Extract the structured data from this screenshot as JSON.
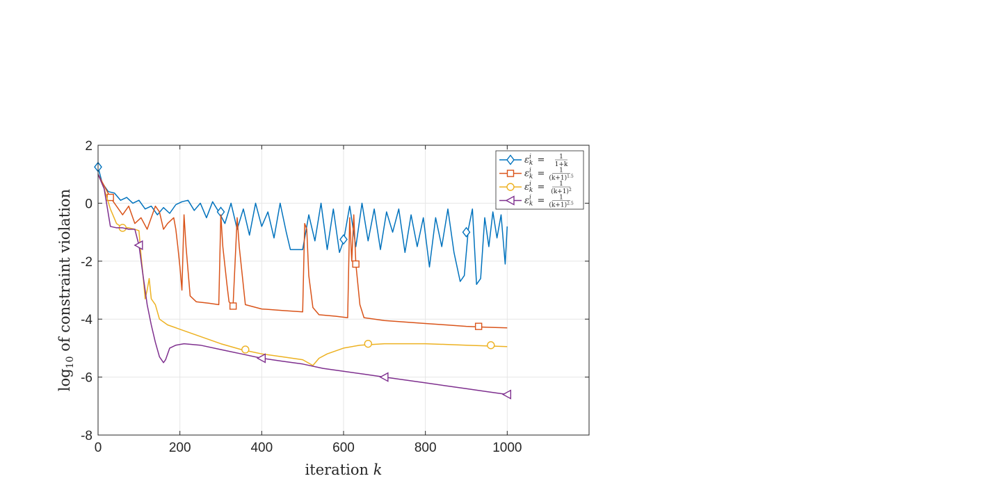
{
  "chart_data": {
    "type": "line",
    "title": "",
    "xlabel": "iteration k",
    "xlabel_text": "iteration",
    "xlabel_var": "k",
    "ylabel": "log10 of constraint violation",
    "ylabel_pre": "log",
    "ylabel_sub": "10",
    "ylabel_post": " of constraint violation",
    "xlim": [
      0,
      1200
    ],
    "ylim": [
      -8,
      2
    ],
    "xticks": [
      0,
      200,
      400,
      600,
      800,
      1000
    ],
    "yticks": [
      -8,
      -6,
      -4,
      -2,
      0,
      2
    ],
    "grid": true,
    "legend_position": "top-right",
    "series": [
      {
        "name": "ε_k^i = 1/(1+k)",
        "legend_lhs": "εki =",
        "legend_num": "1",
        "legend_den": "1+k",
        "color": "#0072BD",
        "marker": "diamond",
        "marker_points": [
          [
            0,
            1.25
          ],
          [
            300,
            -0.3
          ],
          [
            600,
            -1.25
          ],
          [
            900,
            -1.0
          ]
        ],
        "points": [
          [
            0,
            1.25
          ],
          [
            10,
            0.7
          ],
          [
            25,
            0.4
          ],
          [
            40,
            0.35
          ],
          [
            55,
            0.1
          ],
          [
            70,
            0.2
          ],
          [
            85,
            0.0
          ],
          [
            100,
            0.1
          ],
          [
            115,
            -0.2
          ],
          [
            130,
            -0.1
          ],
          [
            145,
            -0.4
          ],
          [
            160,
            -0.15
          ],
          [
            175,
            -0.35
          ],
          [
            190,
            -0.05
          ],
          [
            205,
            0.05
          ],
          [
            220,
            0.1
          ],
          [
            235,
            -0.25
          ],
          [
            250,
            0.0
          ],
          [
            265,
            -0.5
          ],
          [
            280,
            0.05
          ],
          [
            295,
            -0.3
          ],
          [
            310,
            -0.7
          ],
          [
            325,
            0.0
          ],
          [
            340,
            -0.9
          ],
          [
            355,
            -0.2
          ],
          [
            370,
            -1.1
          ],
          [
            385,
            0.0
          ],
          [
            400,
            -0.8
          ],
          [
            415,
            -0.3
          ],
          [
            430,
            -1.2
          ],
          [
            445,
            0.0
          ],
          [
            460,
            -1.0
          ],
          [
            470,
            -1.6
          ],
          [
            490,
            -1.6
          ],
          [
            500,
            -1.6
          ],
          [
            515,
            -0.4
          ],
          [
            530,
            -1.3
          ],
          [
            545,
            0.0
          ],
          [
            560,
            -1.6
          ],
          [
            575,
            -0.2
          ],
          [
            590,
            -1.7
          ],
          [
            600,
            -1.3
          ],
          [
            615,
            -0.1
          ],
          [
            630,
            -1.5
          ],
          [
            645,
            0.0
          ],
          [
            660,
            -1.3
          ],
          [
            675,
            -0.2
          ],
          [
            690,
            -1.6
          ],
          [
            705,
            -0.3
          ],
          [
            720,
            -1.0
          ],
          [
            735,
            -0.2
          ],
          [
            750,
            -1.7
          ],
          [
            765,
            -0.4
          ],
          [
            780,
            -1.5
          ],
          [
            795,
            -0.5
          ],
          [
            810,
            -2.2
          ],
          [
            825,
            -0.5
          ],
          [
            840,
            -1.5
          ],
          [
            855,
            -0.2
          ],
          [
            870,
            -1.7
          ],
          [
            885,
            -2.7
          ],
          [
            895,
            -2.5
          ],
          [
            905,
            -0.9
          ],
          [
            915,
            -0.2
          ],
          [
            925,
            -2.8
          ],
          [
            935,
            -2.6
          ],
          [
            945,
            -0.5
          ],
          [
            955,
            -1.5
          ],
          [
            965,
            -0.3
          ],
          [
            975,
            -1.2
          ],
          [
            985,
            -0.4
          ],
          [
            995,
            -2.1
          ],
          [
            1000,
            -0.8
          ]
        ]
      },
      {
        "name": "ε_k^i = 1/(k+1)^1.5",
        "legend_lhs": "εki =",
        "legend_num": "1",
        "legend_den": "(k+1)",
        "legend_exp": "1.5",
        "color": "#D95319",
        "marker": "square",
        "marker_points": [
          [
            30,
            0.2
          ],
          [
            330,
            -3.55
          ],
          [
            630,
            -2.1
          ],
          [
            930,
            -4.25
          ]
        ],
        "points": [
          [
            0,
            1.0
          ],
          [
            15,
            0.6
          ],
          [
            30,
            0.2
          ],
          [
            45,
            -0.1
          ],
          [
            60,
            -0.4
          ],
          [
            75,
            -0.1
          ],
          [
            90,
            -0.7
          ],
          [
            105,
            -0.5
          ],
          [
            120,
            -0.9
          ],
          [
            140,
            -0.1
          ],
          [
            150,
            -0.3
          ],
          [
            160,
            -0.9
          ],
          [
            170,
            -0.7
          ],
          [
            185,
            -0.5
          ],
          [
            190,
            -0.9
          ],
          [
            195,
            -1.5
          ],
          [
            200,
            -2.2
          ],
          [
            205,
            -3.0
          ],
          [
            210,
            -0.4
          ],
          [
            215,
            -1.5
          ],
          [
            225,
            -3.2
          ],
          [
            240,
            -3.4
          ],
          [
            270,
            -3.45
          ],
          [
            295,
            -3.5
          ],
          [
            300,
            -0.4
          ],
          [
            305,
            -1.5
          ],
          [
            315,
            -2.8
          ],
          [
            320,
            -3.4
          ],
          [
            330,
            -3.55
          ],
          [
            335,
            -2.0
          ],
          [
            340,
            -0.5
          ],
          [
            345,
            -1.5
          ],
          [
            360,
            -3.5
          ],
          [
            400,
            -3.65
          ],
          [
            450,
            -3.7
          ],
          [
            500,
            -3.75
          ],
          [
            505,
            -0.7
          ],
          [
            510,
            -0.9
          ],
          [
            515,
            -2.5
          ],
          [
            525,
            -3.6
          ],
          [
            540,
            -3.85
          ],
          [
            580,
            -3.9
          ],
          [
            610,
            -3.95
          ],
          [
            615,
            -0.5
          ],
          [
            620,
            -2.0
          ],
          [
            625,
            -0.4
          ],
          [
            630,
            -2.1
          ],
          [
            640,
            -3.5
          ],
          [
            650,
            -3.95
          ],
          [
            700,
            -4.05
          ],
          [
            750,
            -4.1
          ],
          [
            800,
            -4.15
          ],
          [
            850,
            -4.2
          ],
          [
            900,
            -4.25
          ],
          [
            950,
            -4.28
          ],
          [
            1000,
            -4.3
          ]
        ]
      },
      {
        "name": "ε_k^i = 1/(k+1)^2",
        "legend_lhs": "εki =",
        "legend_num": "1",
        "legend_den": "(k+1)",
        "legend_exp": "2",
        "color": "#EDB120",
        "marker": "circle",
        "marker_points": [
          [
            60,
            -0.85
          ],
          [
            360,
            -5.05
          ],
          [
            660,
            -4.85
          ],
          [
            960,
            -4.9
          ]
        ],
        "points": [
          [
            0,
            1.0
          ],
          [
            15,
            0.5
          ],
          [
            30,
            -0.2
          ],
          [
            45,
            -0.7
          ],
          [
            60,
            -0.85
          ],
          [
            75,
            -0.85
          ],
          [
            90,
            -0.9
          ],
          [
            100,
            -0.95
          ],
          [
            105,
            -1.8
          ],
          [
            110,
            -2.5
          ],
          [
            115,
            -3.3
          ],
          [
            120,
            -3.0
          ],
          [
            125,
            -2.6
          ],
          [
            130,
            -3.3
          ],
          [
            140,
            -3.5
          ],
          [
            150,
            -4.0
          ],
          [
            170,
            -4.2
          ],
          [
            200,
            -4.35
          ],
          [
            250,
            -4.6
          ],
          [
            300,
            -4.85
          ],
          [
            350,
            -5.05
          ],
          [
            400,
            -5.2
          ],
          [
            450,
            -5.3
          ],
          [
            500,
            -5.4
          ],
          [
            525,
            -5.6
          ],
          [
            540,
            -5.35
          ],
          [
            560,
            -5.2
          ],
          [
            600,
            -5.0
          ],
          [
            640,
            -4.9
          ],
          [
            700,
            -4.85
          ],
          [
            800,
            -4.85
          ],
          [
            900,
            -4.9
          ],
          [
            1000,
            -4.95
          ]
        ]
      },
      {
        "name": "ε_k^i = 1/(k+1)^2.5",
        "legend_lhs": "εki =",
        "legend_num": "1",
        "legend_den": "(k+1)",
        "legend_exp": "2.5",
        "color": "#7E2F8E",
        "marker": "triangle-left",
        "marker_points": [
          [
            100,
            -1.45
          ],
          [
            400,
            -5.35
          ],
          [
            700,
            -6.0
          ],
          [
            1000,
            -6.6
          ]
        ],
        "points": [
          [
            0,
            1.0
          ],
          [
            15,
            0.5
          ],
          [
            30,
            -0.8
          ],
          [
            45,
            -0.85
          ],
          [
            60,
            -0.85
          ],
          [
            75,
            -0.9
          ],
          [
            90,
            -0.9
          ],
          [
            100,
            -1.45
          ],
          [
            110,
            -2.5
          ],
          [
            115,
            -3.0
          ],
          [
            120,
            -3.5
          ],
          [
            130,
            -4.2
          ],
          [
            140,
            -4.8
          ],
          [
            150,
            -5.3
          ],
          [
            160,
            -5.5
          ],
          [
            165,
            -5.4
          ],
          [
            175,
            -5.0
          ],
          [
            190,
            -4.9
          ],
          [
            210,
            -4.85
          ],
          [
            250,
            -4.9
          ],
          [
            300,
            -5.05
          ],
          [
            350,
            -5.2
          ],
          [
            400,
            -5.35
          ],
          [
            450,
            -5.45
          ],
          [
            500,
            -5.55
          ],
          [
            550,
            -5.7
          ],
          [
            600,
            -5.8
          ],
          [
            650,
            -5.9
          ],
          [
            700,
            -6.0
          ],
          [
            750,
            -6.1
          ],
          [
            800,
            -6.2
          ],
          [
            850,
            -6.3
          ],
          [
            900,
            -6.4
          ],
          [
            950,
            -6.5
          ],
          [
            1000,
            -6.6
          ]
        ]
      }
    ]
  }
}
